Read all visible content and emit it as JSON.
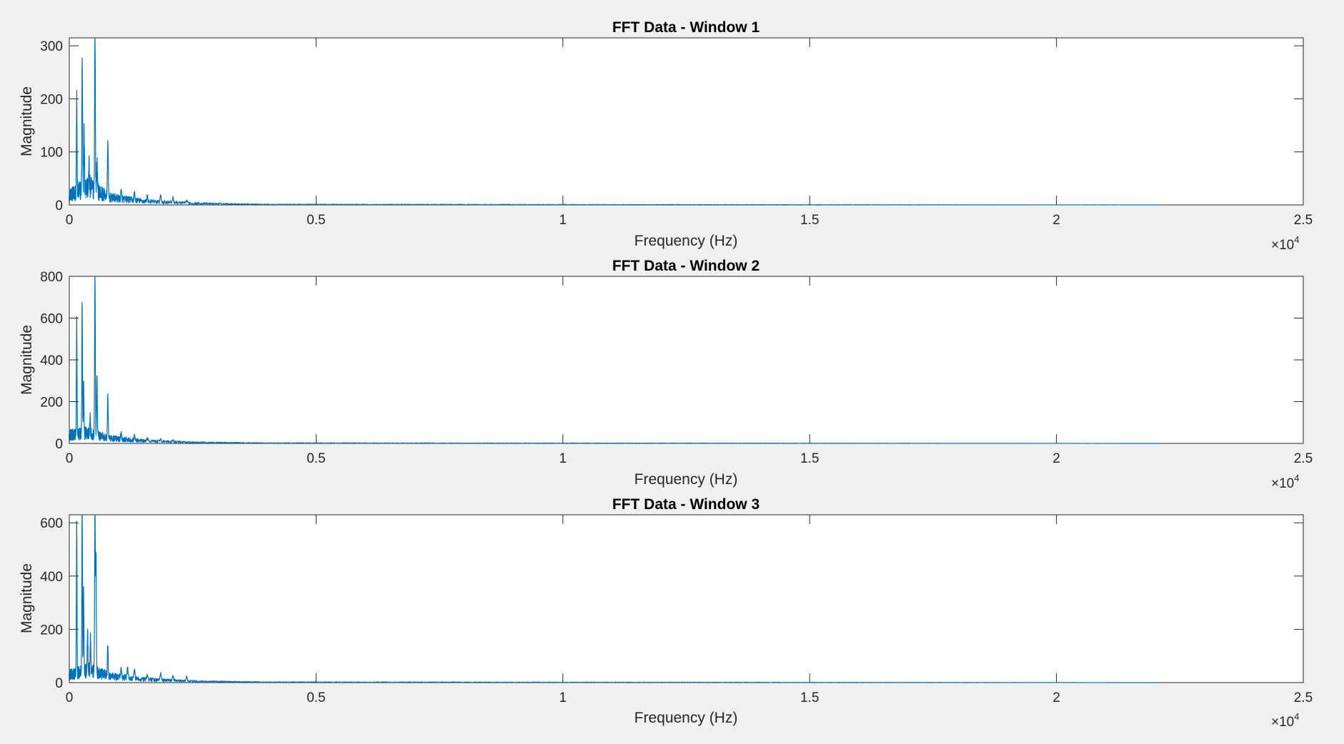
{
  "chart_data": [
    {
      "type": "line",
      "title": "FFT Data - Window 1",
      "xlabel": "Frequency (Hz)",
      "ylabel": "Magnitude",
      "x_exponent_label": "×10",
      "x_exponent_power": "4",
      "xlim": [
        0,
        25000
      ],
      "ylim": [
        0,
        315
      ],
      "xticks": [
        0,
        5000,
        10000,
        15000,
        20000,
        25000
      ],
      "xtick_labels": [
        "0",
        "0.5",
        "1",
        "1.5",
        "2",
        "2.5"
      ],
      "yticks": [
        0,
        100,
        200,
        300
      ],
      "ytick_labels": [
        "0",
        "100",
        "200",
        "300"
      ],
      "grid": false,
      "color": "#0072BD",
      "x_max_data": 22050,
      "peaks": [
        {
          "x": 150,
          "y": 188
        },
        {
          "x": 270,
          "y": 60
        },
        {
          "x": 400,
          "y": 40
        },
        {
          "x": 260,
          "y": 222
        },
        {
          "x": 300,
          "y": 108
        },
        {
          "x": 520,
          "y": 312
        },
        {
          "x": 560,
          "y": 60
        },
        {
          "x": 780,
          "y": 104
        },
        {
          "x": 1050,
          "y": 14
        },
        {
          "x": 1320,
          "y": 13
        },
        {
          "x": 1580,
          "y": 10
        },
        {
          "x": 1850,
          "y": 11
        },
        {
          "x": 2100,
          "y": 9
        },
        {
          "x": 2380,
          "y": 5
        }
      ],
      "floor": [
        {
          "x": 0,
          "y": 18
        },
        {
          "x": 400,
          "y": 35
        },
        {
          "x": 800,
          "y": 14
        },
        {
          "x": 1500,
          "y": 7
        },
        {
          "x": 2500,
          "y": 3
        },
        {
          "x": 4000,
          "y": 1
        },
        {
          "x": 22050,
          "y": 0
        }
      ]
    },
    {
      "type": "line",
      "title": "FFT Data - Window 2",
      "xlabel": "Frequency (Hz)",
      "ylabel": "Magnitude",
      "x_exponent_label": "×10",
      "x_exponent_power": "4",
      "xlim": [
        0,
        25000
      ],
      "ylim": [
        0,
        800
      ],
      "xticks": [
        0,
        5000,
        10000,
        15000,
        20000,
        25000
      ],
      "xtick_labels": [
        "0",
        "0.5",
        "1",
        "1.5",
        "2",
        "2.5"
      ],
      "yticks": [
        0,
        200,
        400,
        600,
        800
      ],
      "ytick_labels": [
        "0",
        "200",
        "400",
        "600",
        "800"
      ],
      "grid": false,
      "color": "#0072BD",
      "x_max_data": 22050,
      "peaks": [
        {
          "x": 150,
          "y": 552
        },
        {
          "x": 260,
          "y": 648
        },
        {
          "x": 290,
          "y": 250
        },
        {
          "x": 420,
          "y": 90
        },
        {
          "x": 520,
          "y": 772
        },
        {
          "x": 560,
          "y": 290
        },
        {
          "x": 780,
          "y": 198
        },
        {
          "x": 1050,
          "y": 30
        },
        {
          "x": 1320,
          "y": 28
        },
        {
          "x": 1580,
          "y": 15
        },
        {
          "x": 1850,
          "y": 14
        },
        {
          "x": 2100,
          "y": 10
        }
      ],
      "floor": [
        {
          "x": 0,
          "y": 40
        },
        {
          "x": 400,
          "y": 50
        },
        {
          "x": 800,
          "y": 25
        },
        {
          "x": 1500,
          "y": 12
        },
        {
          "x": 2500,
          "y": 5
        },
        {
          "x": 4000,
          "y": 2
        },
        {
          "x": 22050,
          "y": 0
        }
      ]
    },
    {
      "type": "line",
      "title": "FFT Data - Window 3",
      "xlabel": "Frequency (Hz)",
      "ylabel": "Magnitude",
      "x_exponent_label": "×10",
      "x_exponent_power": "4",
      "xlim": [
        0,
        25000
      ],
      "ylim": [
        0,
        630
      ],
      "xticks": [
        0,
        5000,
        10000,
        15000,
        20000,
        25000
      ],
      "xtick_labels": [
        "0",
        "0.5",
        "1",
        "1.5",
        "2",
        "2.5"
      ],
      "yticks": [
        0,
        200,
        400,
        600
      ],
      "ytick_labels": [
        "0",
        "200",
        "400",
        "600"
      ],
      "grid": false,
      "color": "#0072BD",
      "x_max_data": 22050,
      "peaks": [
        {
          "x": 150,
          "y": 580
        },
        {
          "x": 260,
          "y": 625
        },
        {
          "x": 290,
          "y": 295
        },
        {
          "x": 370,
          "y": 150
        },
        {
          "x": 430,
          "y": 140
        },
        {
          "x": 520,
          "y": 605
        },
        {
          "x": 540,
          "y": 440
        },
        {
          "x": 780,
          "y": 122
        },
        {
          "x": 1050,
          "y": 45
        },
        {
          "x": 1180,
          "y": 38
        },
        {
          "x": 1320,
          "y": 30
        },
        {
          "x": 1580,
          "y": 20
        },
        {
          "x": 1850,
          "y": 25
        },
        {
          "x": 2100,
          "y": 18
        },
        {
          "x": 2380,
          "y": 17
        }
      ],
      "floor": [
        {
          "x": 0,
          "y": 30
        },
        {
          "x": 400,
          "y": 45
        },
        {
          "x": 800,
          "y": 25
        },
        {
          "x": 1500,
          "y": 12
        },
        {
          "x": 2500,
          "y": 5
        },
        {
          "x": 4000,
          "y": 2
        },
        {
          "x": 22050,
          "y": 0
        }
      ]
    }
  ]
}
